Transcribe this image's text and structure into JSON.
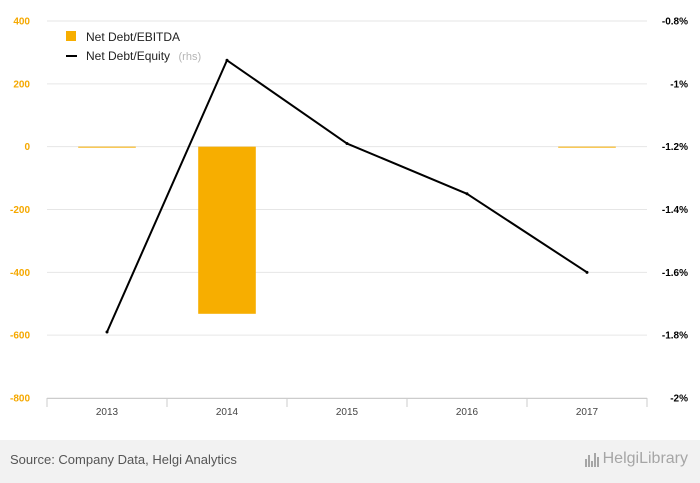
{
  "chart_data": {
    "type": "bar",
    "categories": [
      "2013",
      "2014",
      "2015",
      "2016",
      "2017"
    ],
    "series": [
      {
        "name": "Net Debt/EBITDA",
        "type": "bar",
        "axis": "left",
        "color": "#f7ae00",
        "values": [
          -2,
          -532,
          null,
          null,
          -1
        ]
      },
      {
        "name": "Net Debt/Equity",
        "name_note": "(rhs)",
        "type": "line",
        "axis": "right",
        "color": "#000000",
        "values": [
          -1.79,
          -0.925,
          -1.19,
          -1.35,
          -1.6
        ]
      }
    ],
    "y_left": {
      "ylim": [
        -800,
        400
      ],
      "ticks": [
        "400",
        "200",
        "0",
        "-200",
        "-400",
        "-600",
        "-800"
      ]
    },
    "y_right": {
      "ylim": [
        -2.0,
        -0.8
      ],
      "ticks": [
        "-0.8%",
        "-1%",
        "-1.2%",
        "-1.4%",
        "-1.6%",
        "-1.8%",
        "-2%"
      ]
    },
    "grid": true,
    "legend_position": "top-left"
  },
  "footer": {
    "source": "Source: Company Data, Helgi Analytics",
    "brand": "HelgiLibrary"
  }
}
